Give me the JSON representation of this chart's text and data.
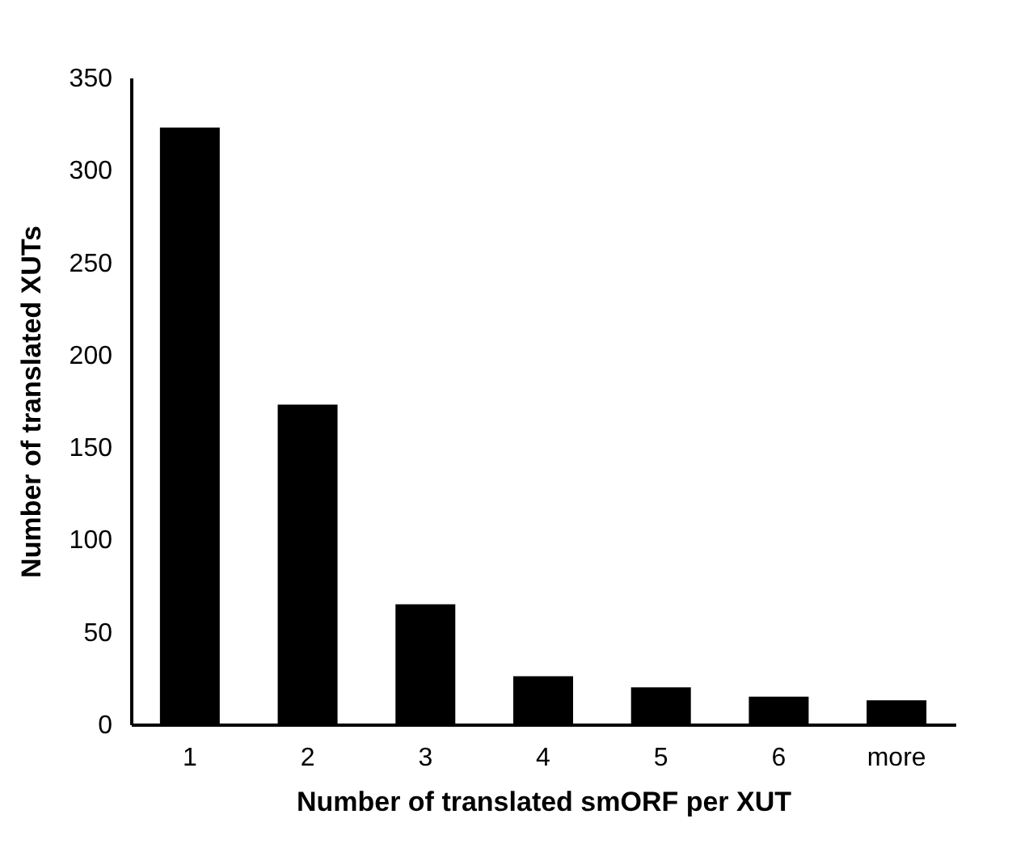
{
  "chart_data": {
    "type": "bar",
    "xlabel": "Number of translated smORF per XUT",
    "ylabel": "Number of translated XUTs",
    "categories": [
      "1",
      "2",
      "3",
      "4",
      "5",
      "6",
      "more"
    ],
    "values": [
      323,
      173,
      65,
      26,
      20,
      15,
      13
    ],
    "color": "#000000",
    "ylim": [
      0,
      350
    ],
    "yticks": [
      0,
      50,
      100,
      150,
      200,
      250,
      300,
      350
    ],
    "grid": false
  }
}
